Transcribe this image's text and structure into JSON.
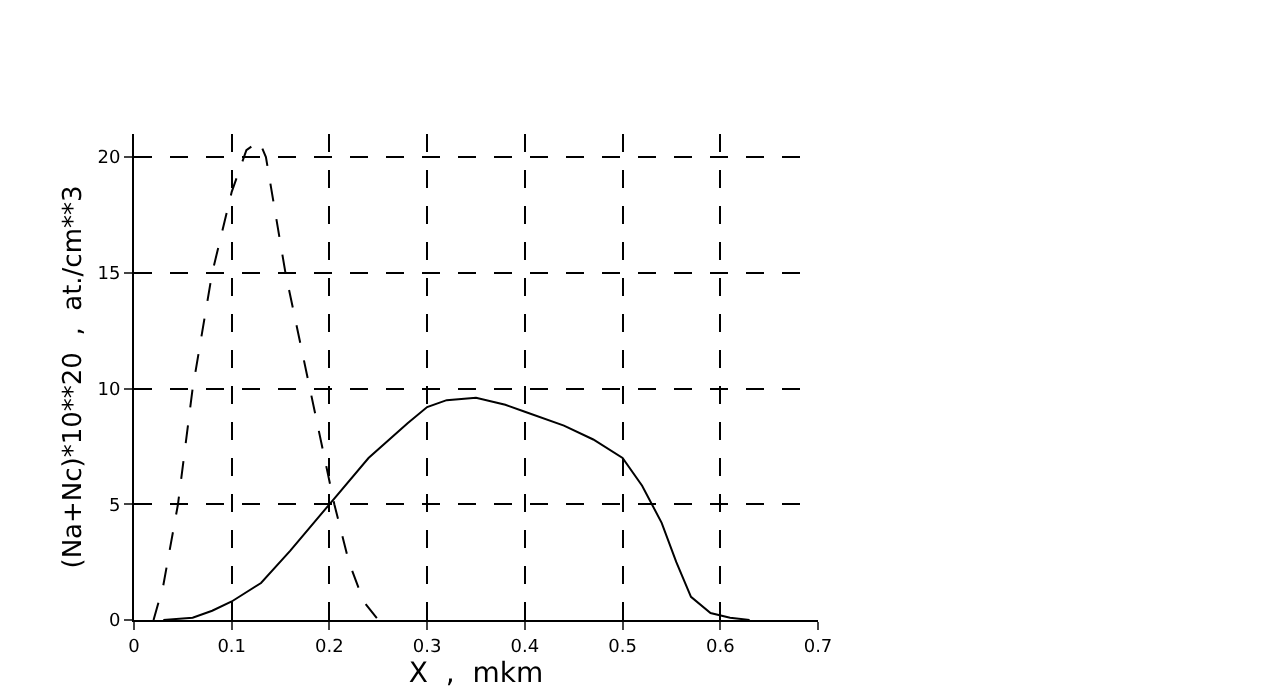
{
  "chart_data": {
    "type": "line",
    "xlabel": "X  ,  mkm",
    "ylabel": "(Na+Nc)*10**20  ,  at./cm**3",
    "xlim": [
      0,
      0.7
    ],
    "xticks": [
      0,
      0.1,
      0.2,
      0.3,
      0.4,
      0.5,
      0.6,
      0.7
    ],
    "ylim": [
      0,
      21
    ],
    "yticks": [
      0,
      5,
      10,
      15,
      20
    ],
    "grid": true,
    "series": [
      {
        "color": "#000000",
        "line_style": "dashed",
        "x": [
          0.02,
          0.03,
          0.045,
          0.06,
          0.08,
          0.1,
          0.115,
          0.128,
          0.135,
          0.155,
          0.18,
          0.205,
          0.22,
          0.235,
          0.25
        ],
        "values": [
          0,
          1.5,
          5,
          10,
          15,
          18.5,
          20.3,
          20.7,
          20,
          15,
          10,
          5,
          2.5,
          0.8,
          0
        ]
      },
      {
        "color": "#000000",
        "line_style": "solid",
        "x": [
          0.03,
          0.06,
          0.08,
          0.1,
          0.13,
          0.16,
          0.2,
          0.24,
          0.28,
          0.3,
          0.32,
          0.35,
          0.38,
          0.4,
          0.44,
          0.47,
          0.5,
          0.52,
          0.54,
          0.555,
          0.57,
          0.59,
          0.61,
          0.63
        ],
        "values": [
          0,
          0.1,
          0.4,
          0.8,
          1.6,
          3,
          5,
          7,
          8.5,
          9.2,
          9.5,
          9.6,
          9.3,
          9,
          8.4,
          7.8,
          7,
          5.8,
          4.2,
          2.5,
          1,
          0.3,
          0.1,
          0
        ]
      }
    ]
  }
}
